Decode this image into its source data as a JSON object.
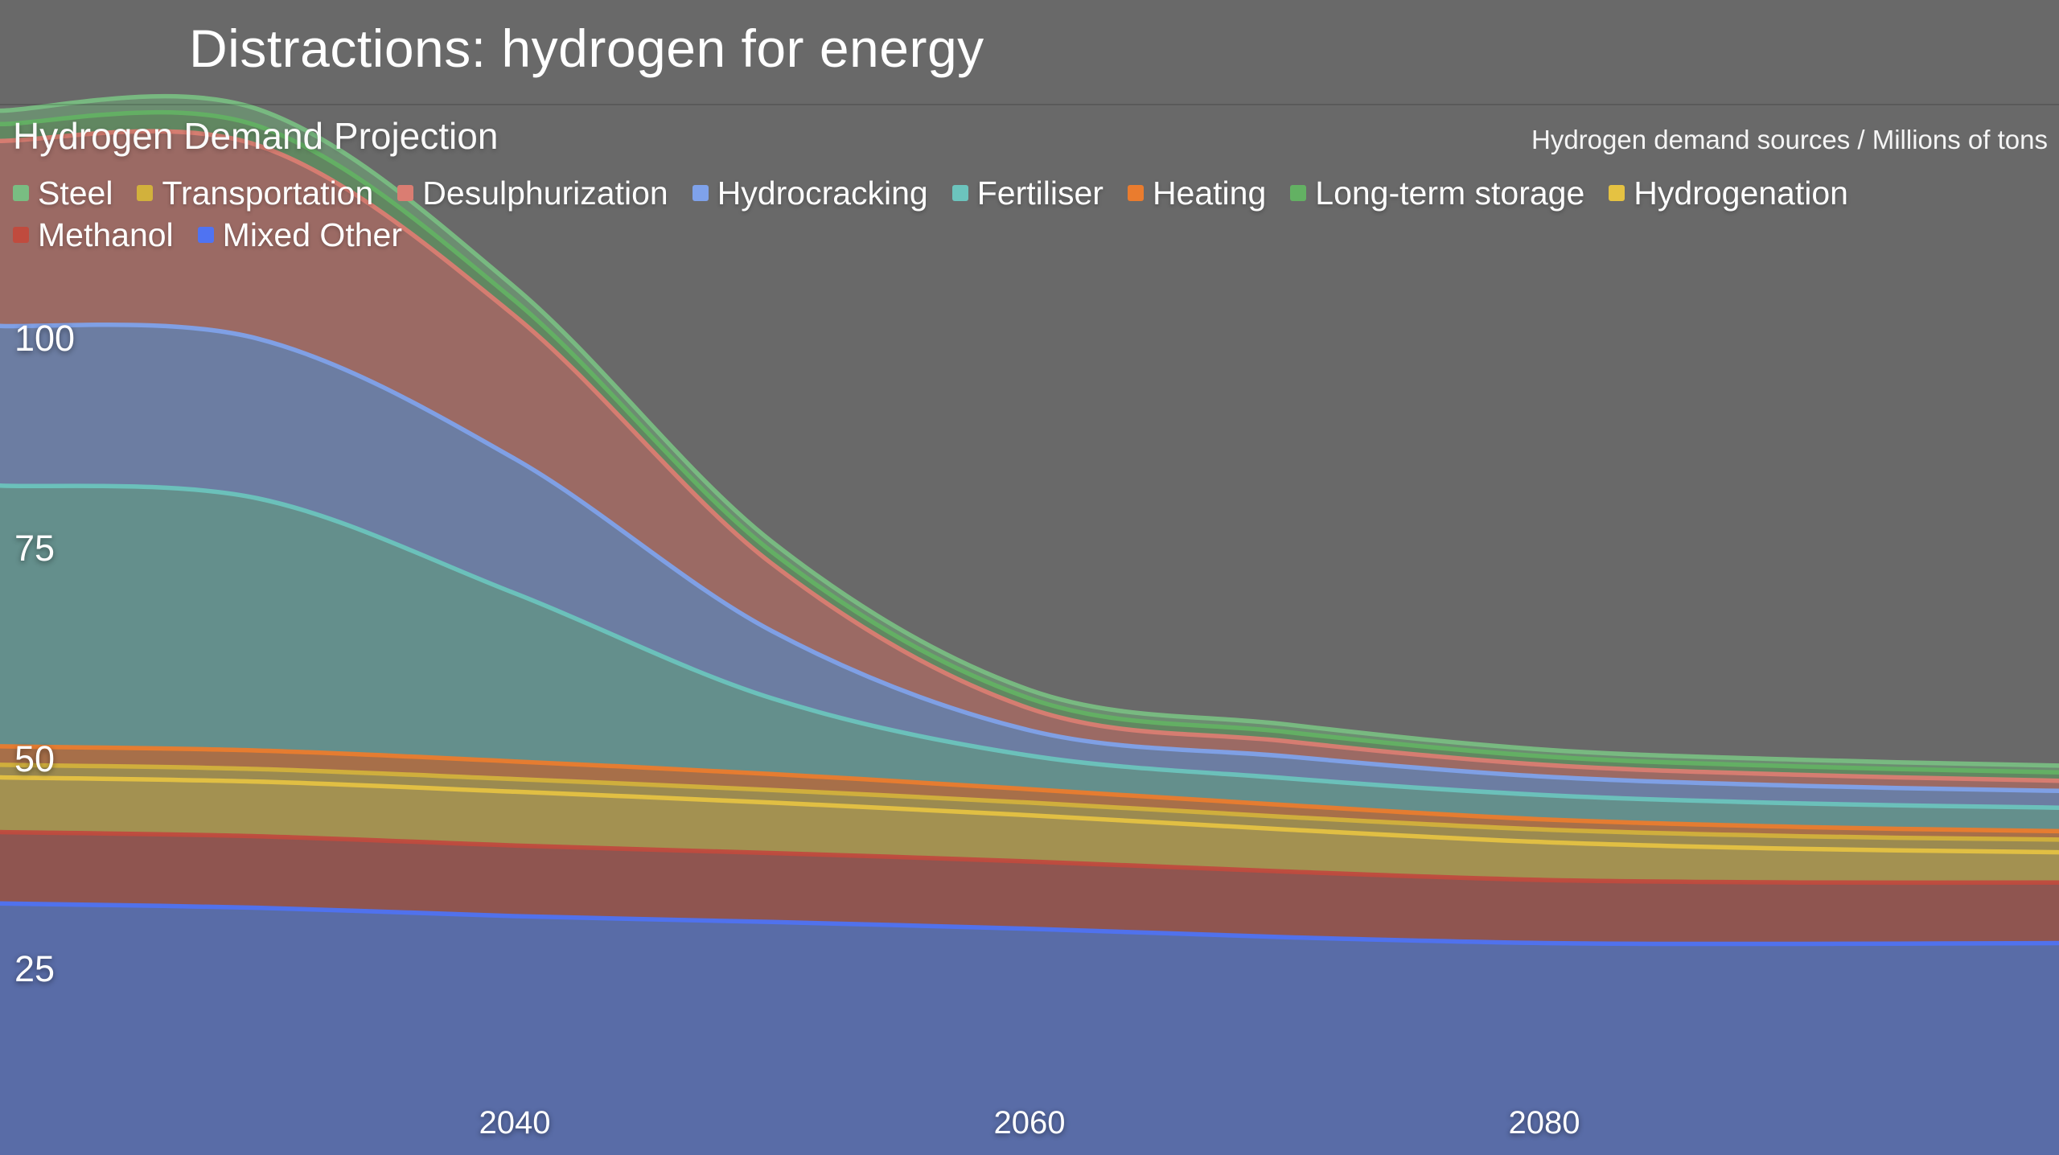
{
  "header": {
    "title": "Distractions: hydrogen for energy"
  },
  "chart": {
    "subtitle": "Hydrogen Demand Projection",
    "units_label": "Hydrogen demand sources / Millions of tons"
  },
  "colors": {
    "background": "#696969",
    "text": "#ffffff"
  },
  "chart_data": {
    "type": "area",
    "stacked": true,
    "title": "Hydrogen Demand Projection",
    "units": "Millions of tons",
    "x": [
      2020,
      2030,
      2040,
      2050,
      2060,
      2070,
      2080,
      2090,
      2100
    ],
    "x_range": [
      2020,
      2100
    ],
    "x_ticks": [
      2040,
      2060,
      2080
    ],
    "y_ticks": [
      25,
      50,
      75,
      100
    ],
    "series": [
      {
        "name": "Mixed Other",
        "color": "#4f73f2",
        "fill": "#4a6fe0",
        "values": [
          33,
          32.5,
          31.5,
          30.8,
          30,
          29,
          28.3,
          28.2,
          28.3
        ]
      },
      {
        "name": "Methanol",
        "color": "#c04b3e",
        "fill": "#b2443a",
        "values": [
          8.5,
          8.5,
          8.4,
          8.2,
          8,
          7.8,
          7.5,
          7.3,
          7.2
        ]
      },
      {
        "name": "Hydrogenation",
        "color": "#e5c242",
        "fill": "#d9b63c",
        "values": [
          6.5,
          6.5,
          6.4,
          6,
          5.5,
          5,
          4.5,
          4,
          3.6
        ]
      },
      {
        "name": "Transportation",
        "color": "#d2b13c",
        "fill": "#c9a93a",
        "values": [
          1.5,
          1.5,
          1.5,
          1.5,
          1.5,
          1.5,
          1.5,
          1.5,
          1.5
        ]
      },
      {
        "name": "Heating",
        "color": "#ea7c2e",
        "fill": "#e0752c",
        "values": [
          2.2,
          2.2,
          2.1,
          1.9,
          1.6,
          1.4,
          1.2,
          1.1,
          1
        ]
      },
      {
        "name": "Fertiliser",
        "color": "#6cc4bd",
        "fill": "#5fb3ad",
        "values": [
          31,
          30,
          20,
          9,
          4,
          3.2,
          2.9,
          2.8,
          2.8
        ]
      },
      {
        "name": "Hydrocracking",
        "color": "#7fa2ea",
        "fill": "#6f8fd6",
        "values": [
          19,
          19,
          16,
          8,
          3,
          2.6,
          2.2,
          2.1,
          2
        ]
      },
      {
        "name": "Desulphurization",
        "color": "#da7d72",
        "fill": "#c96b60",
        "values": [
          22,
          23,
          17,
          8,
          2.6,
          1.8,
          1.4,
          1.3,
          1.2
        ]
      },
      {
        "name": "Long-term storage",
        "color": "#63b163",
        "fill": "#5aa35a",
        "values": [
          2,
          2.3,
          1.8,
          1.4,
          1.2,
          1.1,
          1,
          1,
          1
        ]
      },
      {
        "name": "Steel",
        "color": "#79bd82",
        "fill": "#6fae78",
        "values": [
          1.6,
          2,
          1.6,
          1.2,
          1,
          0.9,
          0.8,
          0.8,
          0.8
        ]
      }
    ],
    "legend_rows": [
      [
        "Steel",
        "Transportation",
        "Desulphurization",
        "Hydrocracking",
        "Fertiliser",
        "Heating",
        "Long-term storage",
        "Hydrogenation"
      ],
      [
        "Methanol",
        "Mixed Other"
      ]
    ]
  }
}
